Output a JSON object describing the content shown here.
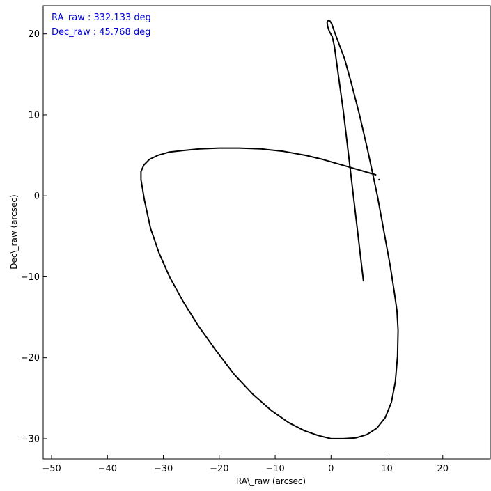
{
  "chart_data": {
    "type": "line",
    "title": "",
    "xlabel": "RA\\_raw (arcsec)",
    "ylabel": "Dec\\_raw (arcsec)",
    "xlim": [
      -51.5,
      28.5
    ],
    "ylim": [
      -32.5,
      23.5
    ],
    "xticks": [
      -50,
      -40,
      -30,
      -20,
      -10,
      0,
      10,
      20
    ],
    "yticks": [
      -30,
      -20,
      -10,
      0,
      10,
      20
    ],
    "grid": false,
    "line_color": "#000000",
    "annotations": [
      {
        "text": "RA_raw : 332.133 deg",
        "color": "#0000dd"
      },
      {
        "text": "Dec_raw : 45.768 deg",
        "color": "#0000dd"
      }
    ],
    "series": [
      {
        "x": [
          5.8,
          5.2,
          4.6,
          4.0,
          3.4,
          2.8,
          2.2,
          1.6,
          1.0,
          0.6,
          0.2,
          -0.3,
          -0.6,
          -0.7,
          -0.5,
          -0.2,
          0.1,
          0.5,
          1.3,
          2.4,
          3.6,
          5.1,
          6.6,
          8.3,
          9.5,
          10.6,
          11.3,
          11.8,
          12.0,
          11.9,
          11.5,
          10.8,
          9.7,
          8.2,
          6.4,
          4.4,
          2.2,
          0.0,
          -2.3,
          -4.8,
          -7.6,
          -10.7,
          -14.0,
          -17.4,
          -20.7,
          -23.8,
          -26.5,
          -28.9,
          -30.8,
          -32.3,
          -33.4,
          -34.0,
          -34.0,
          -33.5,
          -32.5,
          -31.0,
          -29.0,
          -26.5,
          -23.5,
          -20.0,
          -16.5,
          -12.5,
          -8.5,
          -4.5,
          -1.5,
          1.5,
          4.5,
          6.5,
          8.0
        ],
        "y": [
          -10.5,
          -7.0,
          -3.5,
          0.0,
          3.5,
          7.0,
          10.5,
          13.5,
          16.5,
          18.5,
          19.7,
          20.3,
          20.9,
          21.4,
          21.7,
          21.6,
          21.3,
          20.5,
          19.0,
          17.0,
          14.0,
          10.0,
          5.5,
          0.0,
          -4.5,
          -8.7,
          -11.8,
          -14.2,
          -16.6,
          -19.8,
          -23.0,
          -25.5,
          -27.4,
          -28.7,
          -29.5,
          -29.9,
          -30.0,
          -30.0,
          -29.6,
          -29.0,
          -28.0,
          -26.5,
          -24.5,
          -22.0,
          -19.0,
          -16.0,
          -13.0,
          -10.0,
          -7.0,
          -4.0,
          -0.5,
          2.0,
          3.0,
          3.8,
          4.5,
          5.0,
          5.4,
          5.6,
          5.8,
          5.9,
          5.9,
          5.8,
          5.5,
          5.0,
          4.5,
          3.9,
          3.3,
          2.9,
          2.6
        ]
      }
    ],
    "extra_points": [
      {
        "x": 8.6,
        "y": 2.0
      }
    ]
  }
}
